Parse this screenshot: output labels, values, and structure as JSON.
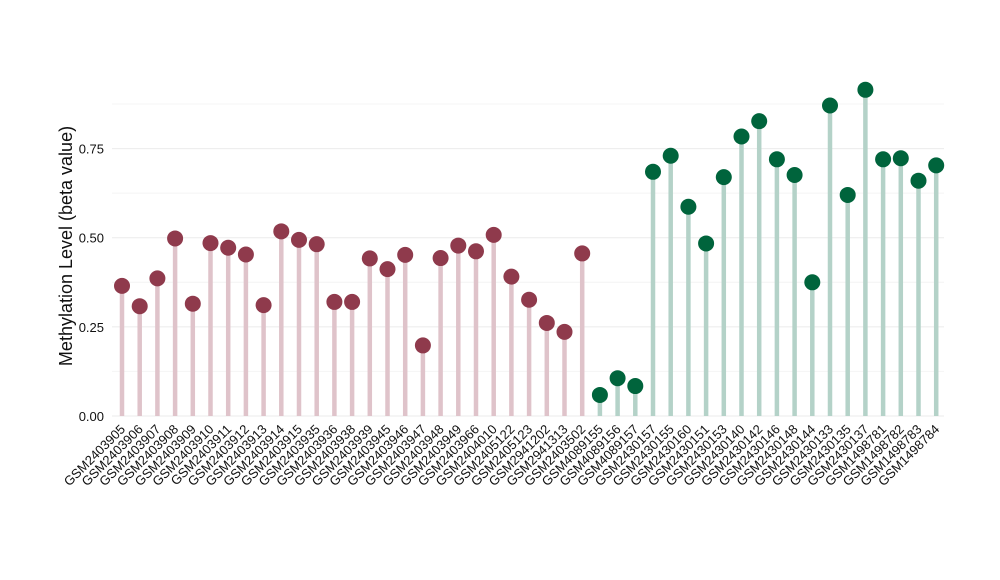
{
  "chart_data": {
    "type": "scatter",
    "style": "lollipop",
    "ylabel": "Methylation Level (beta value)",
    "xlabel": "",
    "ylim": [
      0,
      0.92
    ],
    "yticks": [
      0,
      0.25,
      0.5,
      0.75
    ],
    "ytick_labels": [
      "0.00",
      "0.25",
      "0.50",
      "0.75"
    ],
    "grid": true,
    "colors": {
      "group_1_point": "#8f3a4c",
      "group_1_stem": "#dfc3ca",
      "group_2_point": "#00643c",
      "group_2_stem": "#b4d2c8"
    },
    "categories": [
      "GSM2403905",
      "GSM2403906",
      "GSM2403907",
      "GSM2403908",
      "GSM2403909",
      "GSM2403910",
      "GSM2403911",
      "GSM2403912",
      "GSM2403913",
      "GSM2403914",
      "GSM2403915",
      "GSM2403935",
      "GSM2403936",
      "GSM2403938",
      "GSM2403939",
      "GSM2403945",
      "GSM2403946",
      "GSM2403947",
      "GSM2403948",
      "GSM2403949",
      "GSM2403966",
      "GSM2404010",
      "GSM2405122",
      "GSM2405123",
      "GSM2941202",
      "GSM2941313",
      "GSM2403502",
      "GSM4089155",
      "GSM4089156",
      "GSM4089157",
      "GSM2430157",
      "GSM2430155",
      "GSM2430160",
      "GSM2430151",
      "GSM2430153",
      "GSM2430140",
      "GSM2430142",
      "GSM2430146",
      "GSM2430148",
      "GSM2430144",
      "GSM2430133",
      "GSM2430135",
      "GSM2430137",
      "GSM1498781",
      "GSM1498782",
      "GSM1498783",
      "GSM1498784"
    ],
    "values": [
      0.365,
      0.308,
      0.386,
      0.498,
      0.315,
      0.485,
      0.472,
      0.453,
      0.311,
      0.518,
      0.494,
      0.482,
      0.32,
      0.32,
      0.442,
      0.412,
      0.452,
      0.198,
      0.443,
      0.478,
      0.462,
      0.508,
      0.391,
      0.326,
      0.261,
      0.236,
      0.456,
      0.059,
      0.106,
      0.084,
      0.685,
      0.73,
      0.587,
      0.484,
      0.67,
      0.784,
      0.827,
      0.72,
      0.676,
      0.375,
      0.871,
      0.62,
      0.915,
      0.72,
      0.723,
      0.66,
      0.703
    ],
    "groups": [
      1,
      1,
      1,
      1,
      1,
      1,
      1,
      1,
      1,
      1,
      1,
      1,
      1,
      1,
      1,
      1,
      1,
      1,
      1,
      1,
      1,
      1,
      1,
      1,
      1,
      1,
      1,
      2,
      2,
      2,
      2,
      2,
      2,
      2,
      2,
      2,
      2,
      2,
      2,
      2,
      2,
      2,
      2,
      2,
      2,
      2,
      2
    ]
  }
}
